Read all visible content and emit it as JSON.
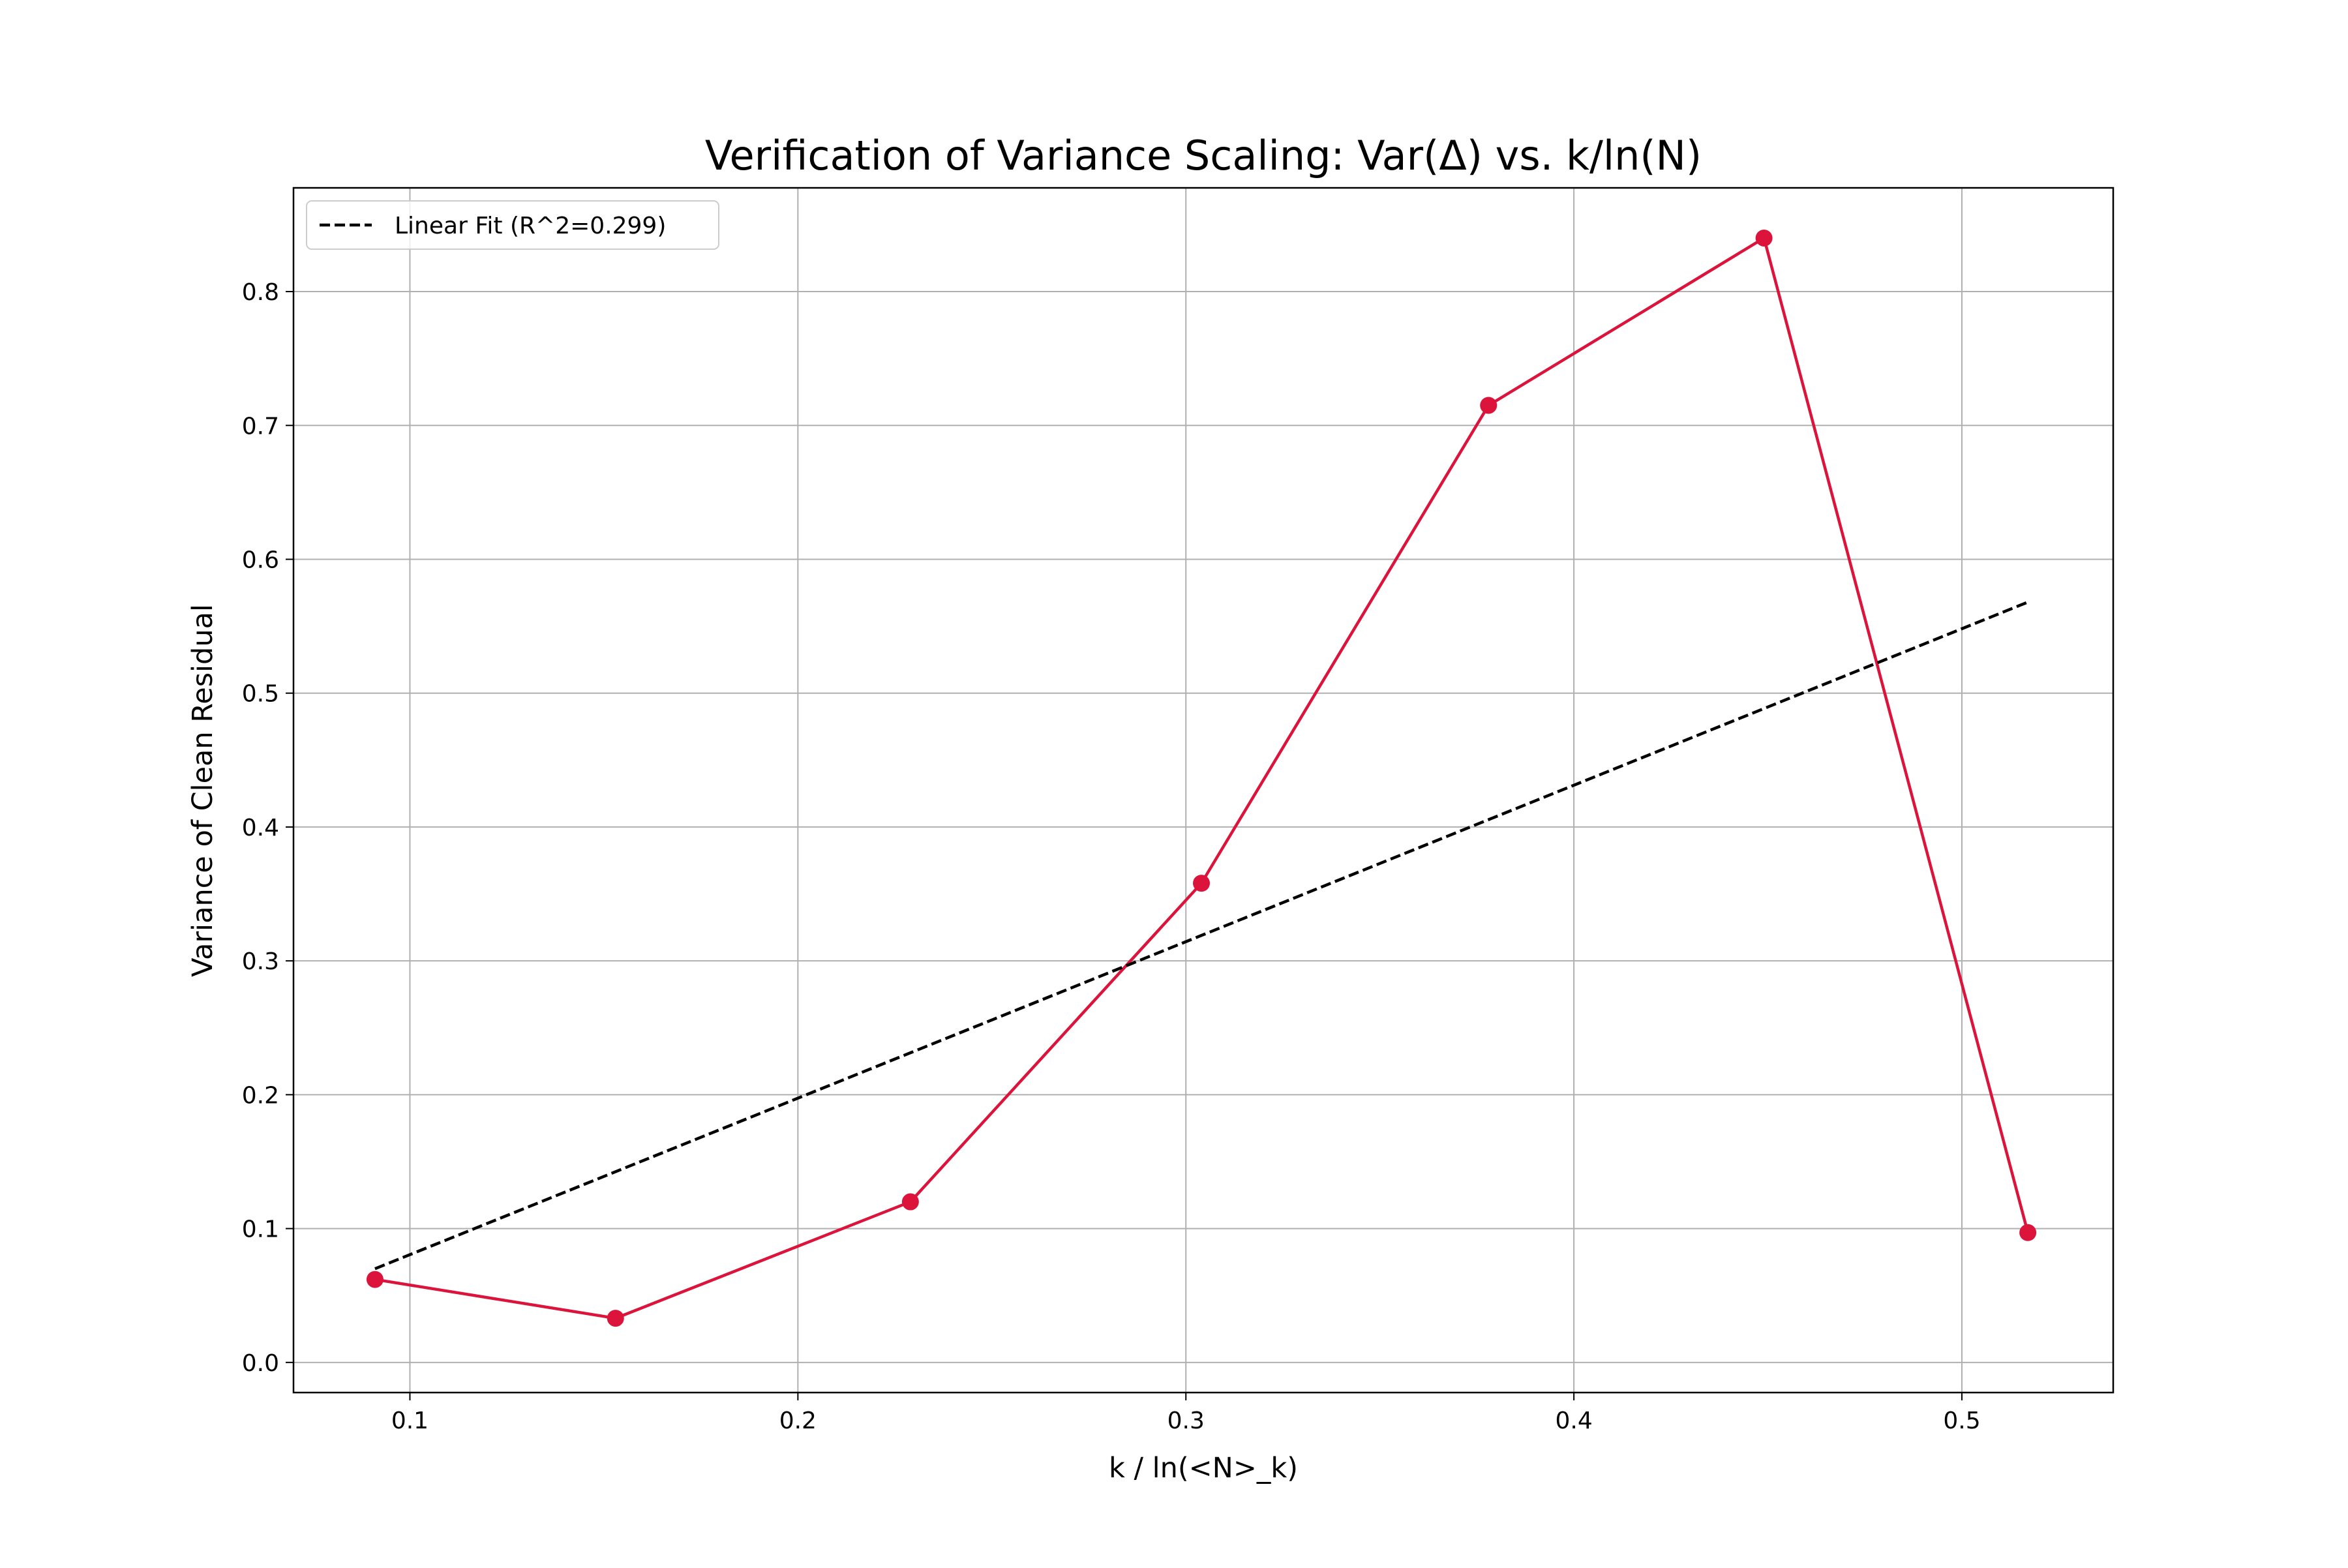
{
  "chart_data": {
    "type": "line",
    "title": "Verification of Variance Scaling: Var(Δ) vs. k/ln(N)",
    "xlabel": "k / ln(<N>_k)",
    "ylabel": "Variance of Clean Residual",
    "xlim": [
      0.07,
      0.539
    ],
    "ylim": [
      -0.0225,
      0.8775
    ],
    "xticks": [
      0.1,
      0.2,
      0.3,
      0.4,
      0.5
    ],
    "xtick_labels": [
      "0.1",
      "0.2",
      "0.3",
      "0.4",
      "0.5"
    ],
    "yticks": [
      0.0,
      0.1,
      0.2,
      0.3,
      0.4,
      0.5,
      0.6,
      0.7,
      0.8
    ],
    "ytick_labels": [
      "0.0",
      "0.1",
      "0.2",
      "0.3",
      "0.4",
      "0.5",
      "0.6",
      "0.7",
      "0.8"
    ],
    "grid": true,
    "legend_position": "top-left",
    "series": [
      {
        "kind": "data",
        "color": "#dc143c",
        "marker": "circle",
        "x": [
          0.091,
          0.153,
          0.229,
          0.304,
          0.378,
          0.449,
          0.517
        ],
        "y": [
          0.062,
          0.033,
          0.12,
          0.358,
          0.715,
          0.84,
          0.097
        ]
      },
      {
        "kind": "fit",
        "name": "Linear Fit (R^2=0.299)",
        "color": "#000000",
        "style": "dashed",
        "x": [
          0.091,
          0.517
        ],
        "y": [
          0.07,
          0.568
        ]
      }
    ]
  }
}
